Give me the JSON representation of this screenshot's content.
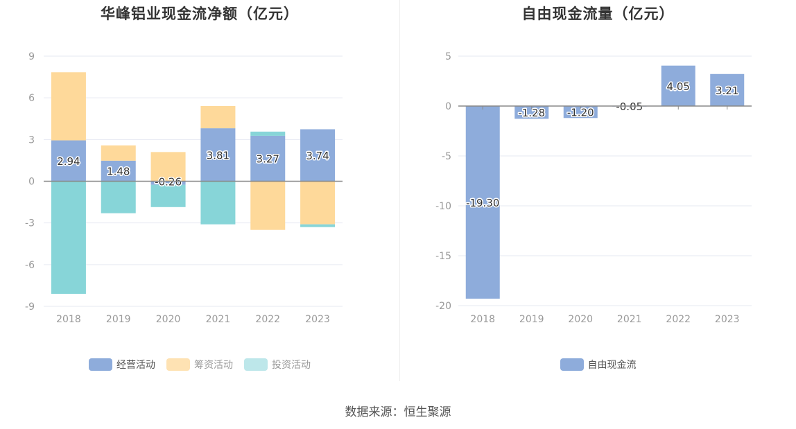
{
  "chart_data": [
    {
      "type": "bar",
      "stacked": true,
      "title": "华峰铝业现金流净额（亿元）",
      "categories": [
        "2018",
        "2019",
        "2020",
        "2021",
        "2022",
        "2023"
      ],
      "ylim": [
        -9,
        9
      ],
      "yticks": [
        9,
        6,
        3,
        0,
        -3,
        -6,
        -9
      ],
      "series": [
        {
          "name": "经营活动",
          "color": "#8eacdb",
          "values": [
            2.94,
            1.48,
            -0.26,
            3.81,
            3.27,
            3.74
          ]
        },
        {
          "name": "筹资活动",
          "color": "#fed99a",
          "values": [
            4.9,
            1.1,
            2.1,
            1.6,
            -3.5,
            -3.1
          ]
        },
        {
          "name": "投资活动",
          "color": "#87d5d8",
          "values": [
            -8.1,
            -2.3,
            -1.6,
            -3.1,
            0.3,
            -0.2
          ]
        }
      ],
      "labeled_series": "经营活动",
      "legend": "bottom-center"
    },
    {
      "type": "bar",
      "title": "自由现金流量（亿元）",
      "categories": [
        "2018",
        "2019",
        "2020",
        "2021",
        "2022",
        "2023"
      ],
      "ylim": [
        -20,
        5
      ],
      "yticks": [
        5,
        0,
        -5,
        -10,
        -15,
        -20
      ],
      "series": [
        {
          "name": "自由现金流",
          "color": "#8eacdb",
          "values": [
            -19.3,
            -1.28,
            -1.2,
            -0.05,
            4.05,
            3.21
          ]
        }
      ],
      "labels": [
        "-19.30",
        "-1.28",
        "-1.20",
        "-0.05",
        "4.05",
        "3.21"
      ],
      "legend": "bottom-center"
    }
  ],
  "footer": {
    "source": "数据来源：恒生聚源"
  }
}
